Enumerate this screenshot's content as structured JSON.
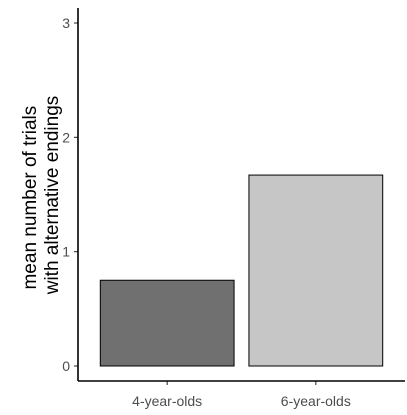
{
  "chart_data": {
    "type": "bar",
    "title": "",
    "xlabel": "",
    "ylabel": "mean number of trials\nwith alternative endings",
    "categories": [
      "4-year-olds",
      "6-year-olds"
    ],
    "values": [
      0.75,
      1.67
    ],
    "ylim": [
      0,
      3
    ],
    "yticks": [
      0,
      1,
      2,
      3
    ],
    "grid": false,
    "legend": "none",
    "colors": {
      "bars": [
        "#707070",
        "#c6c6c6"
      ],
      "outline": "#000000",
      "axis": "#000000",
      "tick_text": "#4d4d4d"
    }
  }
}
